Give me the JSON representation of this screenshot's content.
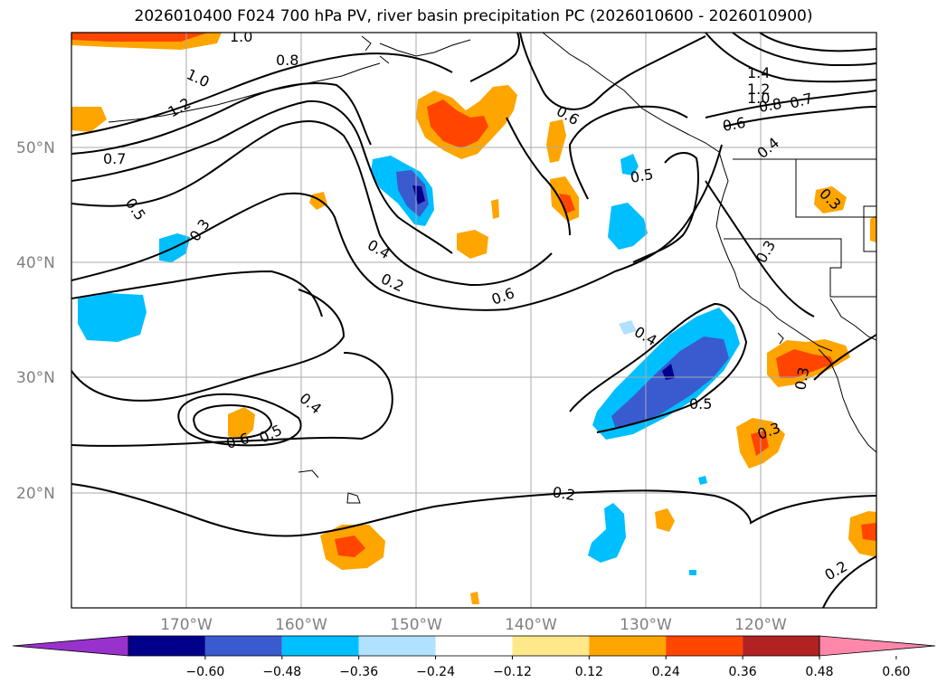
{
  "title": "2026010400 F024 700 hPa PV, river basin precipitation PC (2026010600 - 2026010900)",
  "lat_labels": [
    "50°N",
    "40°N",
    "30°N",
    "20°N"
  ],
  "lon_labels": [
    "170°W",
    "160°W",
    "150°W",
    "140°W",
    "130°W",
    "120°W"
  ],
  "colorbar": {
    "tick_labels": [
      "−0.60",
      "−0.48",
      "−0.36",
      "−0.24",
      "−0.12",
      "0.12",
      "0.24",
      "0.36",
      "0.48",
      "0.60"
    ],
    "colors": [
      "#9932cc",
      "#00008b",
      "#3a5bcf",
      "#00bfff",
      "#b0e2ff",
      "#ffffff",
      "#ffe88a",
      "#ffa500",
      "#ff4500",
      "#b22222",
      "#ff88aa"
    ]
  },
  "contour_labels": [
    "1.0",
    "0.8",
    "1.0",
    "1.2",
    "0.7",
    "0.5",
    "0.3",
    "0.4",
    "0.2",
    "0.6",
    "0.6",
    "0.5",
    "1.4",
    "1.2",
    "1.0",
    "0.8",
    "0.7",
    "0.6",
    "0.4",
    "0.3",
    "0.3",
    "0.4",
    "0.5",
    "0.4",
    "0.6",
    "0.5",
    "0.3",
    "0.3",
    "0.2",
    "0.2"
  ]
}
